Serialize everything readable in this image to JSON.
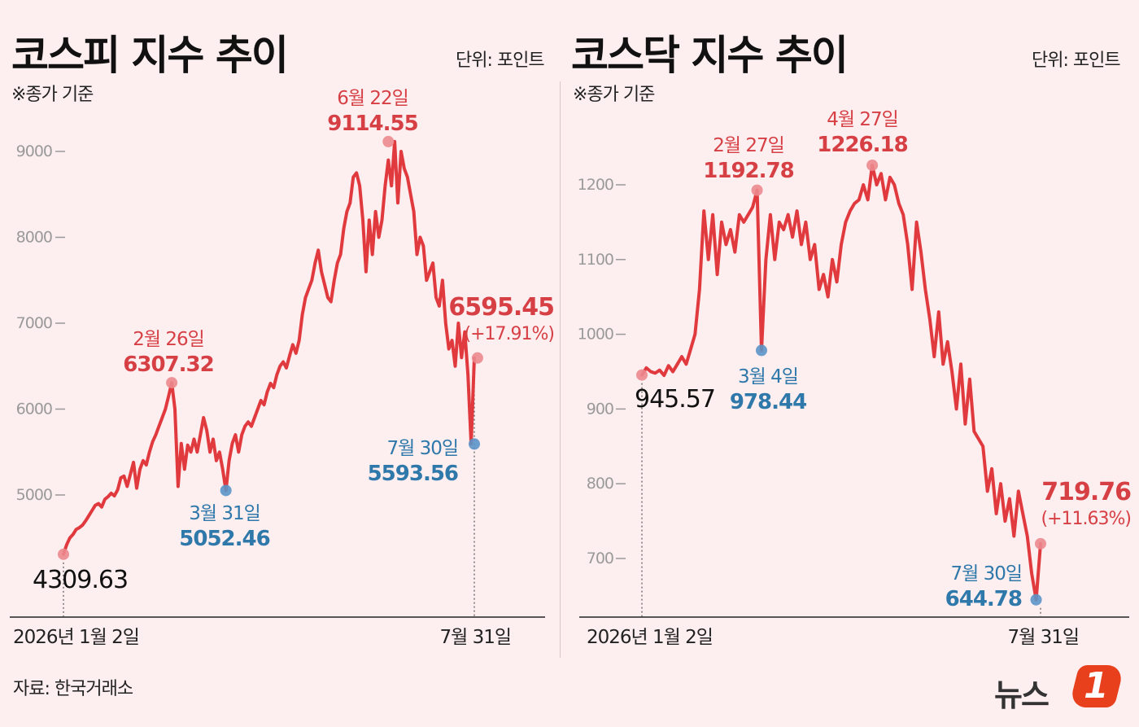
{
  "source": "자료: 한국거래소",
  "logo": {
    "text": "뉴스",
    "badge": "1"
  },
  "colors": {
    "line": "#e03a3e",
    "high": "#d64045",
    "low": "#2e78aa",
    "text": "#111111",
    "grid": "#9a9a9a"
  },
  "panels": [
    {
      "title": "코스피 지수 추이",
      "unit": "단위: 포인트",
      "basis": "※종가 기준"
    },
    {
      "title": "코스닥 지수 추이",
      "unit": "단위: 포인트",
      "basis": "※종가 기준"
    }
  ],
  "chart_data": [
    {
      "type": "line",
      "title": "코스피 지수 추이",
      "unit": "단위: 포인트",
      "ylim": [
        3800,
        9400
      ],
      "yticks": [
        "5000",
        "6000",
        "7000",
        "8000",
        "9000"
      ],
      "xaxis_labels": [
        "2026년 1월 2일",
        "7월 31일"
      ],
      "series": [
        {
          "values": [
            4309.63,
            4420,
            4500,
            4540,
            4600,
            4620,
            4650,
            4700,
            4760,
            4820,
            4880,
            4900,
            4860,
            4950,
            4980,
            5020,
            4990,
            5060,
            5200,
            5220,
            5100,
            5240,
            5380,
            5080,
            5300,
            5400,
            5350,
            5500,
            5620,
            5700,
            5800,
            5900,
            6000,
            6150,
            6307.32,
            6000,
            5100,
            5600,
            5300,
            5580,
            5500,
            5650,
            5500,
            5700,
            5900,
            5750,
            5500,
            5650,
            5400,
            5500,
            5300,
            5052.46,
            5400,
            5600,
            5700,
            5500,
            5700,
            5800,
            5850,
            5800,
            5900,
            6000,
            6100,
            6050,
            6200,
            6300,
            6250,
            6400,
            6500,
            6550,
            6480,
            6620,
            6750,
            6650,
            6800,
            7100,
            7300,
            7400,
            7500,
            7700,
            7850,
            7600,
            7450,
            7300,
            7250,
            7500,
            7700,
            7800,
            8100,
            8300,
            8400,
            8700,
            8750,
            8600,
            8200,
            7600,
            8200,
            7800,
            8300,
            8000,
            8200,
            8600,
            8900,
            8600,
            9114.55,
            8400,
            9000,
            8800,
            8700,
            8500,
            8300,
            7800,
            8000,
            7900,
            7500,
            7600,
            7700,
            7300,
            7200,
            7500,
            7000,
            6700,
            6800,
            6500,
            7000,
            6600,
            6900,
            6400,
            5593.56,
            6595.45
          ]
        }
      ],
      "annotations": [
        {
          "date": "2026년 1월 2일",
          "value": "4309.63",
          "idx": 0,
          "val": 4309.63,
          "kind": "start"
        },
        {
          "date": "2월 26일",
          "value": "6307.32",
          "idx": 34,
          "val": 6307.32,
          "kind": "high"
        },
        {
          "date": "3월 31일",
          "value": "5052.46",
          "idx": 51,
          "val": 5052.46,
          "kind": "low"
        },
        {
          "date": "6월 22일",
          "value": "9114.55",
          "idx": 102,
          "val": 9114.55,
          "kind": "high"
        },
        {
          "date": "7월 30일",
          "value": "5593.56",
          "idx": 129,
          "val": 5593.56,
          "kind": "low"
        },
        {
          "date": "7월 31일",
          "value": "6595.45",
          "change": "(+17.91%)",
          "idx": 130,
          "val": 6595.45,
          "kind": "end"
        }
      ]
    },
    {
      "type": "line",
      "title": "코스닥 지수 추이",
      "unit": "단위: 포인트",
      "ylim": [
        620,
        1265
      ],
      "yticks": [
        "700",
        "800",
        "900",
        "1000",
        "1100",
        "1200"
      ],
      "xaxis_labels": [
        "2026년 1월 2일",
        "7월 31일"
      ],
      "series": [
        {
          "values": [
            945.57,
            955,
            950,
            948,
            952,
            945,
            958,
            950,
            960,
            970,
            960,
            980,
            1000,
            1060,
            1165,
            1100,
            1160,
            1080,
            1150,
            1120,
            1140,
            1110,
            1160,
            1150,
            1160,
            1170,
            1192.78,
            978.44,
            1100,
            1160,
            1100,
            1150,
            1140,
            1160,
            1130,
            1165,
            1120,
            1150,
            1100,
            1120,
            1060,
            1080,
            1050,
            1100,
            1070,
            1120,
            1150,
            1165,
            1175,
            1180,
            1200,
            1180,
            1226.18,
            1200,
            1215,
            1180,
            1210,
            1200,
            1175,
            1160,
            1120,
            1060,
            1150,
            1110,
            1060,
            1020,
            970,
            1030,
            960,
            990,
            950,
            900,
            960,
            880,
            940,
            870,
            860,
            850,
            790,
            820,
            760,
            800,
            750,
            780,
            730,
            790,
            760,
            730,
            680,
            644.78,
            719.76
          ]
        }
      ],
      "annotations": [
        {
          "date": "2026년 1월 2일",
          "value": "945.57",
          "idx": 0,
          "val": 945.57,
          "kind": "start"
        },
        {
          "date": "2월 27일",
          "value": "1192.78",
          "idx": 26,
          "val": 1192.78,
          "kind": "high"
        },
        {
          "date": "3월 4일",
          "value": "978.44",
          "idx": 27,
          "val": 978.44,
          "kind": "low"
        },
        {
          "date": "4월 27일",
          "value": "1226.18",
          "idx": 52,
          "val": 1226.18,
          "kind": "high"
        },
        {
          "date": "7월 30일",
          "value": "644.78",
          "idx": 89,
          "val": 644.78,
          "kind": "low"
        },
        {
          "date": "7월 31일",
          "value": "719.76",
          "change": "(+11.63%)",
          "idx": 90,
          "val": 719.76,
          "kind": "end"
        }
      ]
    }
  ]
}
